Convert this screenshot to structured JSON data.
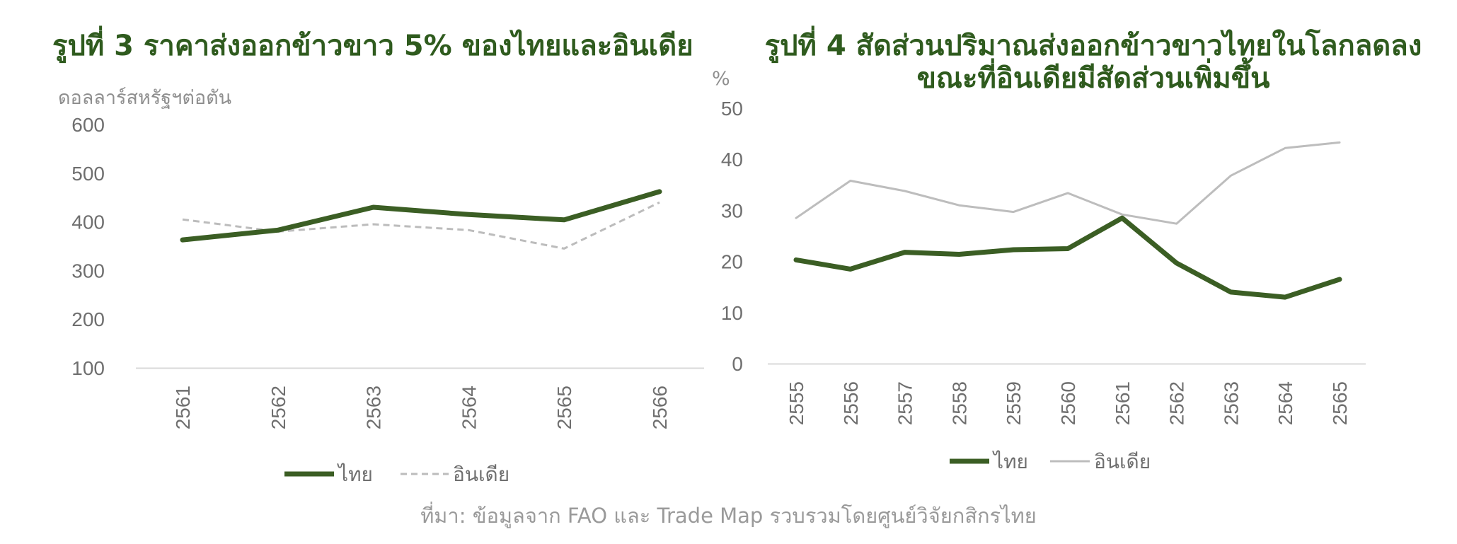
{
  "colors": {
    "thai": "#3b5e24",
    "india1": "#bcbcbc",
    "india2": "#bdbdbd",
    "title": "#2f5b1e",
    "axis": "#d9d9d9",
    "tick": "#6f6f6f"
  },
  "figure1": {
    "title": "รูปที่ 3 ราคาส่งออกข้าวขาว 5% ของไทยและอินเดีย"
  },
  "figure2": {
    "title_line1": "รูปที่ 4 สัดส่วนปริมาณส่งออกข้าวขาวไทยในโลกลดลง",
    "title_line2": "ขณะที่อินเดียมีสัดส่วนเพิ่มขึ้น"
  },
  "source": "ที่มา: ข้อมูลจาก FAO และ Trade Map รวบรวมโดยศูนย์วิจัยกสิกรไทย",
  "chart_data": [
    {
      "type": "line",
      "title": "รูปที่ 3 ราคาส่งออกข้าวขาว 5% ของไทยและอินเดีย",
      "ylabel": "ดอลลาร์สหรัฐฯต่อตัน",
      "xlabel": "",
      "categories": [
        "2561",
        "2562",
        "2563",
        "2564",
        "2565",
        "2566"
      ],
      "ylim": [
        100,
        600
      ],
      "yticks": [
        100,
        200,
        300,
        400,
        500,
        600
      ],
      "grid": false,
      "legend": "bottom",
      "series": [
        {
          "name": "ไทย",
          "values": [
            363,
            383,
            430,
            415,
            404,
            462
          ],
          "style": "solid"
        },
        {
          "name": "อินเดีย",
          "values": [
            405,
            380,
            395,
            383,
            345,
            440
          ],
          "style": "dashed"
        }
      ]
    },
    {
      "type": "line",
      "title": "รูปที่ 4 สัดส่วนปริมาณส่งออกข้าวขาวไทยในโลกลดลง ขณะที่อินเดียมีสัดส่วนเพิ่มขึ้น",
      "ylabel": "%",
      "xlabel": "",
      "categories": [
        "2555",
        "2556",
        "2557",
        "2558",
        "2559",
        "2560",
        "2561",
        "2562",
        "2563",
        "2564",
        "2565"
      ],
      "ylim": [
        0,
        50
      ],
      "yticks": [
        0,
        10,
        20,
        30,
        40,
        50
      ],
      "grid": false,
      "legend": "bottom",
      "series": [
        {
          "name": "ไทย",
          "values": [
            20.3,
            18.5,
            21.8,
            21.4,
            22.3,
            22.5,
            28.5,
            19.7,
            14.0,
            13.0,
            16.5
          ],
          "style": "solid"
        },
        {
          "name": "อินเดีย",
          "values": [
            28.5,
            35.8,
            33.8,
            31.0,
            29.7,
            33.4,
            29.2,
            27.4,
            36.8,
            42.2,
            43.3
          ],
          "style": "solid"
        }
      ]
    }
  ]
}
